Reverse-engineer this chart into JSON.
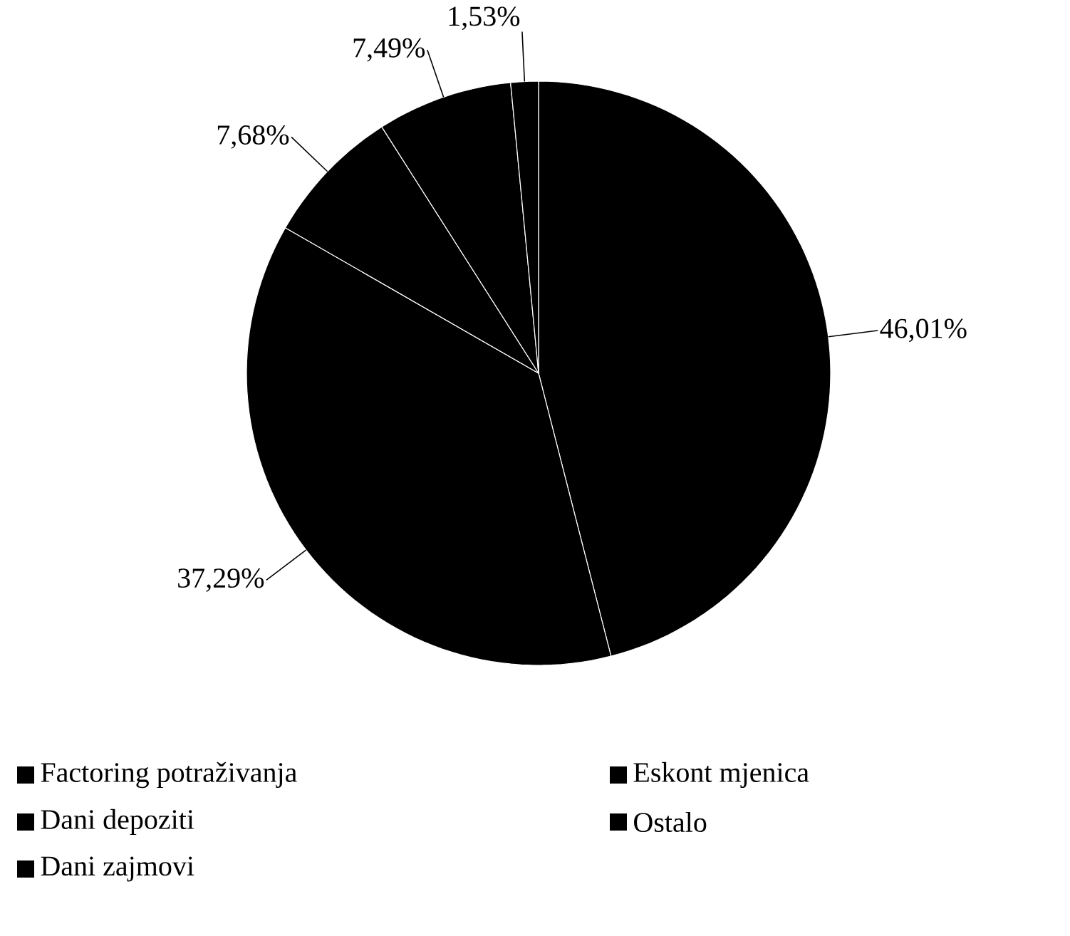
{
  "chart_data": {
    "type": "pie",
    "categories": [
      "Factoring potraživanja",
      "Eskont mjenica",
      "Dani depoziti",
      "Ostalo",
      "Dani zajmovi"
    ],
    "values": [
      46.01,
      37.29,
      7.68,
      7.49,
      1.53
    ],
    "value_labels": [
      "46,01%",
      "37,29%",
      "7,68%",
      "7,49%",
      "1,53%"
    ],
    "colors": [
      "#000000",
      "#000000",
      "#000000",
      "#000000",
      "#000000"
    ],
    "legend": "bottom"
  }
}
